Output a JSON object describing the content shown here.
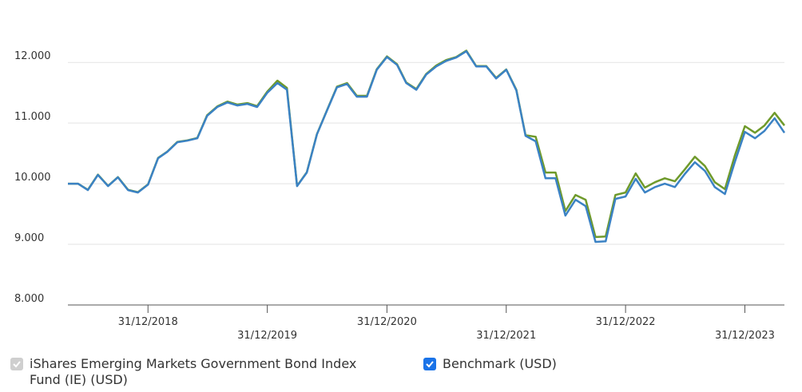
{
  "chart_data": {
    "type": "line",
    "x": [
      "2018-04-30",
      "2018-05-31",
      "2018-06-30",
      "2018-07-31",
      "2018-08-31",
      "2018-09-30",
      "2018-10-31",
      "2018-11-30",
      "2018-12-31",
      "2019-01-31",
      "2019-02-28",
      "2019-03-31",
      "2019-04-30",
      "2019-05-31",
      "2019-06-30",
      "2019-07-31",
      "2019-08-31",
      "2019-09-30",
      "2019-10-31",
      "2019-11-30",
      "2019-12-31",
      "2020-01-31",
      "2020-02-29",
      "2020-03-31",
      "2020-04-30",
      "2020-05-31",
      "2020-06-30",
      "2020-07-31",
      "2020-08-31",
      "2020-09-30",
      "2020-10-31",
      "2020-11-30",
      "2020-12-31",
      "2021-01-31",
      "2021-02-28",
      "2021-03-31",
      "2021-04-30",
      "2021-05-31",
      "2021-06-30",
      "2021-07-31",
      "2021-08-31",
      "2021-09-30",
      "2021-10-31",
      "2021-11-30",
      "2021-12-31",
      "2022-01-31",
      "2022-02-28",
      "2022-03-31",
      "2022-04-30",
      "2022-05-31",
      "2022-06-30",
      "2022-07-31",
      "2022-08-31",
      "2022-09-30",
      "2022-10-31",
      "2022-11-30",
      "2022-12-31",
      "2023-01-31",
      "2023-02-28",
      "2023-03-31",
      "2023-04-30",
      "2023-05-31",
      "2023-06-30",
      "2023-07-31",
      "2023-08-31",
      "2023-09-30",
      "2023-10-31",
      "2023-11-30",
      "2023-12-31",
      "2024-01-31",
      "2024-02-29",
      "2024-03-31",
      "2024-04-30"
    ],
    "series": [
      {
        "name": "iShares Emerging Markets Government Bond Index Fund (IE) (USD)",
        "color": "#6f9a2b",
        "values": [
          10000,
          10000,
          9900,
          10150,
          9965,
          10110,
          9900,
          9860,
          9990,
          10425,
          10530,
          10690,
          10715,
          10755,
          11130,
          11275,
          11355,
          11305,
          11330,
          11280,
          11520,
          11700,
          11580,
          9965,
          10190,
          10820,
          11205,
          11600,
          11660,
          11450,
          11450,
          11890,
          12100,
          11970,
          11670,
          11560,
          11810,
          11950,
          12040,
          12090,
          12195,
          11940,
          11940,
          11745,
          11885,
          11550,
          10800,
          10775,
          10185,
          10185,
          9550,
          9815,
          9735,
          9120,
          9130,
          9815,
          9855,
          10170,
          9935,
          10025,
          10090,
          10040,
          10235,
          10445,
          10290,
          10025,
          9910,
          10460,
          10950,
          10840,
          10960,
          11170,
          10960
        ]
      },
      {
        "name": "Benchmark (USD)",
        "color": "#3b82c4",
        "values": [
          10000,
          10000,
          9895,
          10145,
          9960,
          10105,
          9895,
          9855,
          9985,
          10420,
          10525,
          10685,
          10710,
          10750,
          11120,
          11265,
          11340,
          11290,
          11315,
          11265,
          11500,
          11660,
          11550,
          9960,
          10185,
          10815,
          11200,
          11590,
          11645,
          11435,
          11435,
          11880,
          12090,
          11960,
          11660,
          11550,
          11800,
          11935,
          12025,
          12080,
          12185,
          11935,
          11935,
          11735,
          11880,
          11540,
          10790,
          10700,
          10090,
          10090,
          9475,
          9735,
          9630,
          9040,
          9050,
          9750,
          9790,
          10080,
          9855,
          9945,
          10000,
          9945,
          10160,
          10355,
          10210,
          9945,
          9830,
          10355,
          10855,
          10750,
          10870,
          11080,
          10840
        ]
      }
    ],
    "xlim": [
      "2018-04-30",
      "2024-04-30"
    ],
    "xticks": [
      {
        "value": "2018-12-31",
        "label": "31/12/2018"
      },
      {
        "value": "2019-12-31",
        "label": "31/12/2019"
      },
      {
        "value": "2020-12-31",
        "label": "31/12/2020"
      },
      {
        "value": "2021-12-31",
        "label": "31/12/2021"
      },
      {
        "value": "2022-12-31",
        "label": "31/12/2022"
      },
      {
        "value": "2023-12-31",
        "label": "31/12/2023"
      }
    ],
    "ylim": [
      8000,
      13030
    ],
    "yticks": [
      {
        "value": 8000,
        "label": "8.000"
      },
      {
        "value": 9000,
        "label": "9.000"
      },
      {
        "value": 10000,
        "label": "10.000"
      },
      {
        "value": 11000,
        "label": "11.000"
      },
      {
        "value": 12000,
        "label": "12.000"
      }
    ],
    "grid": true
  }
}
